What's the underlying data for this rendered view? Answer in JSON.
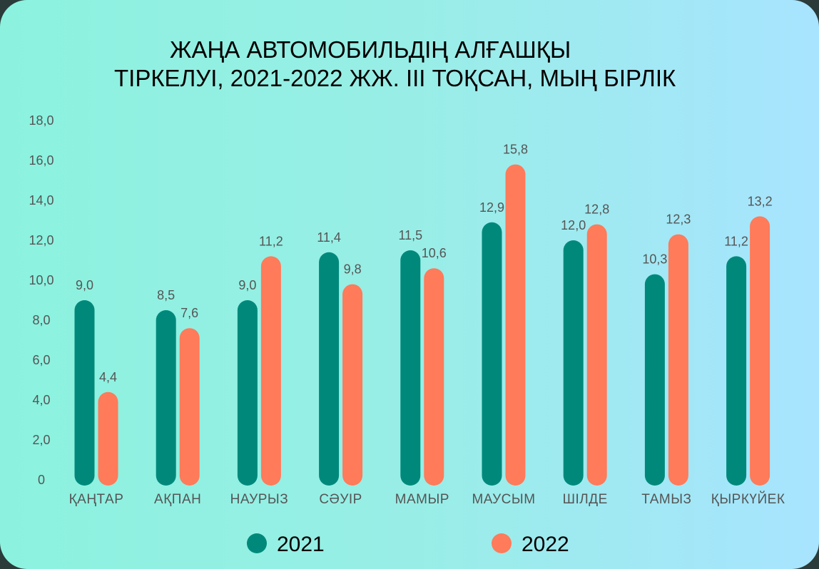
{
  "chart_data": {
    "type": "bar",
    "title_line1": "ЖАҢА АВТОМОБИЛЬДІҢ АЛҒАШҚЫ",
    "title_line2": "ТІРКЕЛУІ, 2021-2022 ЖЖ. ІІІ ТОҚСАН, МЫҢ БІРЛІК",
    "categories": [
      "ҚАҢТАР",
      "АҚПАН",
      "НАУРЫЗ",
      "СӘУІР",
      "МАМЫР",
      "МАУСЫМ",
      "ШІЛДЕ",
      "ТАМЫЗ",
      "ҚЫРКҮЙЕК"
    ],
    "series": [
      {
        "name": "2021",
        "color": "#00897b",
        "values": [
          9.0,
          8.5,
          9.0,
          11.4,
          11.5,
          12.9,
          12.0,
          10.3,
          11.2
        ]
      },
      {
        "name": "2022",
        "color": "#ff7b5a",
        "values": [
          4.4,
          7.6,
          11.2,
          9.8,
          10.6,
          15.8,
          12.8,
          12.3,
          13.2
        ]
      }
    ],
    "data_labels": [
      [
        "9,0",
        "8,5",
        "9,0",
        "11,4",
        "11,5",
        "12,9",
        "12,0",
        "10,3",
        "11,2"
      ],
      [
        "4,4",
        "7,6",
        "11,2",
        "9,8",
        "10,6",
        "15,8",
        "12,8",
        "12,3",
        "13,2"
      ]
    ],
    "yticks": [
      0,
      2,
      4,
      6,
      8,
      10,
      12,
      14,
      16,
      18
    ],
    "ytick_labels": [
      "0",
      "2,0",
      "4,0",
      "6,0",
      "8,0",
      "10,0",
      "12,0",
      "14,0",
      "16,0",
      "18,0"
    ],
    "ylim": [
      0,
      18
    ],
    "grid": false,
    "legend": "bottom"
  }
}
